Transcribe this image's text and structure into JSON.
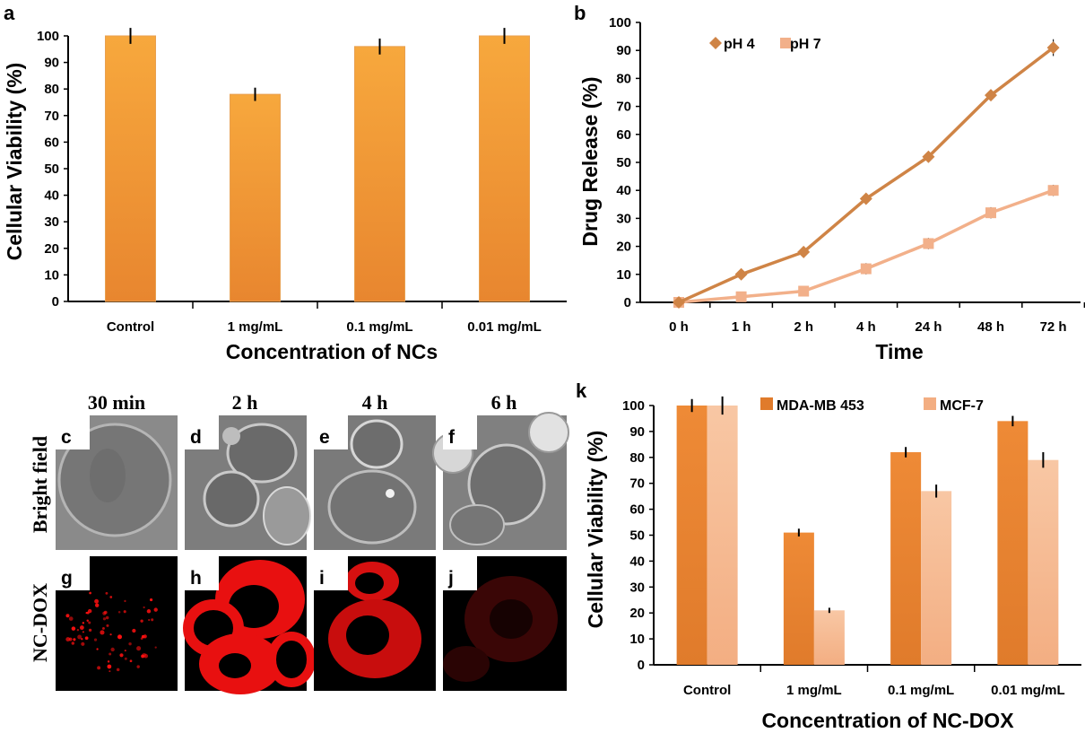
{
  "panels": {
    "a": "a",
    "b": "b",
    "k": "k",
    "c": "c",
    "d": "d",
    "e": "e",
    "f": "f",
    "g": "g",
    "h": "h",
    "i": "i",
    "j": "j"
  },
  "colors": {
    "orange": "#e8862f",
    "light_orange": "#f6b88f",
    "line_dark": "#cf8446",
    "line_light": "#f2b08a",
    "microscopy_red": "#ff1010"
  },
  "microscopy": {
    "time_labels": [
      "30 min",
      "2 h",
      "4 h",
      "6 h"
    ],
    "row_labels": [
      "Bright field",
      "NC-DOX"
    ]
  },
  "chart_data": [
    {
      "type": "bar",
      "panel": "a",
      "categories": [
        "Control",
        "1 mg/mL",
        "0.1 mg/mL",
        "0.01 mg/mL"
      ],
      "values": [
        100,
        78,
        96,
        100
      ],
      "errors": [
        3,
        2.5,
        3,
        3
      ],
      "ylabel": "Cellular Viability (%)",
      "xlabel": "Concentration of NCs",
      "ylim": [
        0,
        100
      ],
      "yticks": [
        0,
        10,
        20,
        30,
        40,
        50,
        60,
        70,
        80,
        90,
        100
      ]
    },
    {
      "type": "line",
      "panel": "b",
      "categories": [
        "0 h",
        "1 h",
        "2 h",
        "4 h",
        "24 h",
        "48 h",
        "72 h"
      ],
      "series": [
        {
          "name": "pH 4",
          "values": [
            0,
            10,
            18,
            37,
            52,
            74,
            91
          ],
          "errors": [
            1,
            1,
            1,
            1.5,
            1,
            2,
            3
          ],
          "marker": "diamond"
        },
        {
          "name": "pH 7",
          "values": [
            0,
            2,
            4,
            12,
            21,
            32,
            40
          ],
          "errors": [
            1,
            1,
            1.5,
            2,
            2,
            2,
            2
          ],
          "marker": "square"
        }
      ],
      "ylabel": "Drug Release (%)",
      "xlabel": "Time",
      "ylim": [
        0,
        100
      ],
      "yticks": [
        0,
        10,
        20,
        30,
        40,
        50,
        60,
        70,
        80,
        90,
        100
      ],
      "legend": "top-left"
    },
    {
      "type": "bar",
      "panel": "k",
      "categories": [
        "Control",
        "1 mg/mL",
        "0.1 mg/mL",
        "0.01 mg/mL"
      ],
      "series": [
        {
          "name": "MDA-MB 453",
          "values": [
            100,
            51,
            82,
            94
          ],
          "errors": [
            2.5,
            1.5,
            2,
            2
          ]
        },
        {
          "name": "MCF-7",
          "values": [
            100,
            21,
            67,
            79
          ],
          "errors": [
            3.5,
            1,
            2.5,
            3
          ]
        }
      ],
      "ylabel": "Cellular Viability (%)",
      "xlabel": "Concentration of NC-DOX",
      "ylim": [
        0,
        100
      ],
      "yticks": [
        0,
        10,
        20,
        30,
        40,
        50,
        60,
        70,
        80,
        90,
        100
      ],
      "legend": "top"
    }
  ]
}
